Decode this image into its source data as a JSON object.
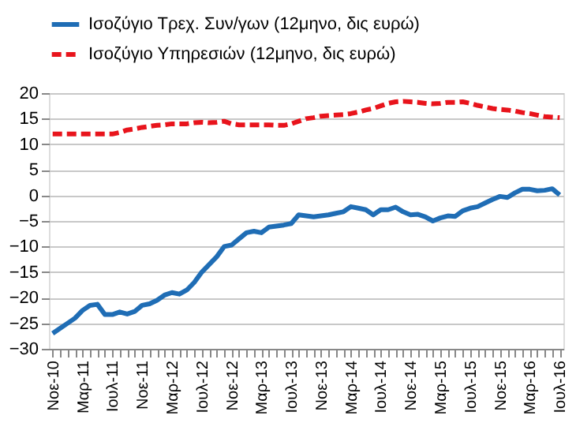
{
  "chart_data": {
    "type": "line",
    "categories": [
      "Νοε-10",
      null,
      null,
      null,
      "Μαρ-11",
      null,
      null,
      null,
      "Ιουλ-11",
      null,
      null,
      null,
      "Νοε-11",
      null,
      null,
      null,
      "Μαρ-12",
      null,
      null,
      null,
      "Ιουλ-12",
      null,
      null,
      null,
      "Νοε-12",
      null,
      null,
      null,
      "Μαρ-13",
      null,
      null,
      null,
      "Ιουλ-13",
      null,
      null,
      null,
      "Νοε-13",
      null,
      null,
      null,
      "Μαρ-14",
      null,
      null,
      null,
      "Ιουλ-14",
      null,
      null,
      null,
      "Νοε-14",
      null,
      null,
      null,
      "Μαρ-15",
      null,
      null,
      null,
      "Ιουλ-15",
      null,
      null,
      null,
      "Νοε-15",
      null,
      null,
      null,
      "Μαρ-16",
      null,
      null,
      null,
      "Ιουλ-16"
    ],
    "series": [
      {
        "name": "Ισοζύγιο Τρεχ. Συν/γων (12μηνο, δις ευρώ)",
        "color": "#1f6db5",
        "line_style": "solid",
        "values": [
          -27,
          -26,
          -25,
          -24,
          -22.5,
          -21.5,
          -21.3,
          -23.3,
          -23.3,
          -22.8,
          -23.2,
          -22.7,
          -21.5,
          -21.2,
          -20.5,
          -19.5,
          -19,
          -19.3,
          -18.5,
          -17,
          -15,
          -13.5,
          -12,
          -10,
          -9.7,
          -8.5,
          -7.3,
          -7,
          -7.3,
          -6.2,
          -6,
          -5.8,
          -5.5,
          -3.8,
          -4,
          -4.2,
          -4,
          -3.8,
          -3.5,
          -3.2,
          -2.2,
          -2.5,
          -2.8,
          -3.8,
          -2.8,
          -2.8,
          -2.3,
          -3.2,
          -3.8,
          -3.7,
          -4.2,
          -5,
          -4.4,
          -4,
          -4.1,
          -3,
          -2.5,
          -2.2,
          -1.5,
          -0.8,
          -0.2,
          -0.4,
          0.5,
          1.2,
          1.2,
          0.9,
          1,
          1.3,
          0.1
        ]
      },
      {
        "name": "Ισοζύγιο Υπηρεσιών (12μηνο, δις ευρώ)",
        "color": "#e8141c",
        "line_style": "dashed",
        "values": [
          12,
          12,
          12,
          12,
          12,
          12,
          12,
          12,
          12,
          12.3,
          12.8,
          13,
          13.3,
          13.5,
          13.7,
          13.8,
          14,
          14,
          14,
          14.2,
          14.3,
          14.2,
          14.3,
          14.5,
          14,
          13.8,
          13.8,
          13.8,
          13.8,
          13.8,
          13.7,
          13.7,
          14,
          14.5,
          15,
          15.2,
          15.5,
          15.6,
          15.7,
          15.8,
          16,
          16.3,
          16.7,
          17,
          17.5,
          18,
          18.3,
          18.4,
          18.3,
          18.2,
          18,
          17.9,
          18,
          18.2,
          18.2,
          18.3,
          18,
          17.6,
          17.3,
          17,
          16.8,
          16.7,
          16.5,
          16.2,
          16,
          15.7,
          15.4,
          15.3,
          15.2
        ]
      }
    ],
    "ylim": [
      -30,
      20
    ],
    "yticks": [
      -30,
      -25,
      -20,
      -15,
      -10,
      -5,
      0,
      5,
      10,
      15,
      20
    ],
    "grid": "y",
    "legend": "top",
    "marker": "none"
  }
}
